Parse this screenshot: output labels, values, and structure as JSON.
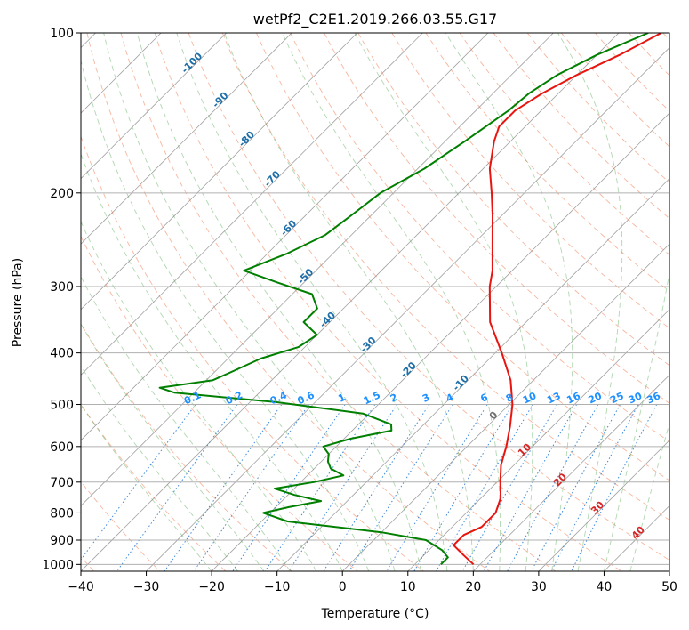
{
  "chart_data": {
    "type": "line",
    "title": "wetPf2_C2E1.2019.266.03.55.G17",
    "xlabel": "Temperature (°C)",
    "ylabel": "Pressure (hPa)",
    "xlim": [
      -40,
      50
    ],
    "ylim": [
      1030,
      100
    ],
    "y_scale": "log",
    "grid": true,
    "x_ticks": [
      "−40",
      "−30",
      "−20",
      "−10",
      "0",
      "10",
      "20",
      "30",
      "40",
      "50"
    ],
    "y_ticks": [
      "100",
      "200",
      "300",
      "400",
      "500",
      "600",
      "700",
      "800",
      "900",
      "1000"
    ],
    "mixing_ratio_labels": [
      "0.1",
      "0.2",
      "0.4",
      "0.6",
      "1",
      "1.5",
      "2",
      "3",
      "4",
      "6",
      "8",
      "10",
      "13",
      "16",
      "20",
      "25",
      "30",
      "36"
    ],
    "mixing_ratio_values": [
      0.1,
      0.2,
      0.4,
      0.6,
      1,
      1.5,
      2,
      3,
      4,
      6,
      8,
      10,
      13,
      16,
      20,
      25,
      30,
      36
    ],
    "moist_adiabat_labels": [
      "-100",
      "-90",
      "-80",
      "-70",
      "-60",
      "-50",
      "-40",
      "-30",
      "-20",
      "-10"
    ],
    "moist_adiabat_values": [
      -100,
      -90,
      -80,
      -70,
      -60,
      -50,
      -40,
      -30,
      -20,
      -10
    ],
    "moist_adiabat_label_pressure": [
      115,
      135,
      160,
      190,
      235,
      290,
      350,
      390,
      435,
      460
    ],
    "warm_adiabat_labels": [
      "0",
      "10",
      "20",
      "30",
      "40"
    ],
    "warm_adiabat_values": [
      0,
      10,
      20,
      30,
      40
    ],
    "warm_adiabat_label_pressure": [
      530,
      615,
      700,
      790,
      880
    ],
    "series": [
      {
        "name": "",
        "color": "#e8140f",
        "points": [
          {
            "p": 100,
            "t": -33.5
          },
          {
            "p": 110,
            "t": -36.5
          },
          {
            "p": 120,
            "t": -40
          },
          {
            "p": 130,
            "t": -42.5
          },
          {
            "p": 140,
            "t": -44
          },
          {
            "p": 150,
            "t": -44
          },
          {
            "p": 160,
            "t": -42.5
          },
          {
            "p": 180,
            "t": -39
          },
          {
            "p": 200,
            "t": -35
          },
          {
            "p": 220,
            "t": -31.5
          },
          {
            "p": 250,
            "t": -27
          },
          {
            "p": 280,
            "t": -23
          },
          {
            "p": 300,
            "t": -21
          },
          {
            "p": 350,
            "t": -15.5
          },
          {
            "p": 400,
            "t": -9
          },
          {
            "p": 450,
            "t": -3.5
          },
          {
            "p": 500,
            "t": 0.5
          },
          {
            "p": 550,
            "t": 3.5
          },
          {
            "p": 600,
            "t": 6
          },
          {
            "p": 650,
            "t": 8
          },
          {
            "p": 700,
            "t": 10.5
          },
          {
            "p": 750,
            "t": 13
          },
          {
            "p": 800,
            "t": 14.5
          },
          {
            "p": 850,
            "t": 14.5
          },
          {
            "p": 880,
            "t": 13
          },
          {
            "p": 920,
            "t": 13
          },
          {
            "p": 960,
            "t": 16
          },
          {
            "p": 1000,
            "t": 19
          }
        ]
      },
      {
        "name": "",
        "color": "#007f00",
        "points": [
          {
            "p": 100,
            "t": -35.5
          },
          {
            "p": 110,
            "t": -40
          },
          {
            "p": 120,
            "t": -43
          },
          {
            "p": 130,
            "t": -44.5
          },
          {
            "p": 140,
            "t": -45
          },
          {
            "p": 160,
            "t": -47
          },
          {
            "p": 180,
            "t": -49
          },
          {
            "p": 200,
            "t": -52
          },
          {
            "p": 220,
            "t": -53
          },
          {
            "p": 240,
            "t": -54
          },
          {
            "p": 260,
            "t": -57
          },
          {
            "p": 280,
            "t": -61
          },
          {
            "p": 295,
            "t": -54
          },
          {
            "p": 310,
            "t": -47
          },
          {
            "p": 330,
            "t": -44
          },
          {
            "p": 350,
            "t": -44
          },
          {
            "p": 370,
            "t": -40
          },
          {
            "p": 390,
            "t": -41
          },
          {
            "p": 410,
            "t": -45
          },
          {
            "p": 430,
            "t": -47
          },
          {
            "p": 450,
            "t": -49
          },
          {
            "p": 465,
            "t": -56
          },
          {
            "p": 475,
            "t": -53
          },
          {
            "p": 495,
            "t": -36
          },
          {
            "p": 520,
            "t": -21
          },
          {
            "p": 545,
            "t": -15
          },
          {
            "p": 560,
            "t": -14
          },
          {
            "p": 580,
            "t": -19
          },
          {
            "p": 600,
            "t": -22
          },
          {
            "p": 620,
            "t": -20
          },
          {
            "p": 640,
            "t": -19
          },
          {
            "p": 660,
            "t": -17.5
          },
          {
            "p": 680,
            "t": -14.5
          },
          {
            "p": 700,
            "t": -18
          },
          {
            "p": 720,
            "t": -23
          },
          {
            "p": 740,
            "t": -19
          },
          {
            "p": 760,
            "t": -14
          },
          {
            "p": 780,
            "t": -18
          },
          {
            "p": 800,
            "t": -21
          },
          {
            "p": 830,
            "t": -16
          },
          {
            "p": 870,
            "t": 0
          },
          {
            "p": 900,
            "t": 8
          },
          {
            "p": 940,
            "t": 12
          },
          {
            "p": 970,
            "t": 14
          },
          {
            "p": 990,
            "t": 14
          },
          {
            "p": 1000,
            "t": 14
          }
        ]
      }
    ]
  },
  "colors": {
    "dry_adiabat": "#f07040",
    "moist_adiabat": "#3a9a3a",
    "mixing_ratio": "#1f77d4",
    "isotherm": "#808080",
    "grid": "#b0b0b0",
    "moist_label": "#1f6fa8",
    "warm_label": "#d62728",
    "zero_label": "#707070",
    "mix_label": "#1e90ff"
  }
}
